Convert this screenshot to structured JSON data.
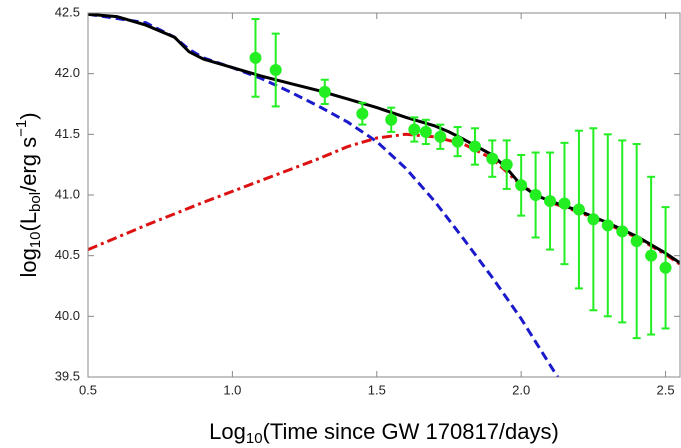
{
  "chart_data": {
    "type": "line",
    "xlabel": [
      "Log",
      "10",
      "(Time since GW 170817/days)"
    ],
    "ylabel": [
      "log",
      "10",
      "(L",
      "bol",
      "/erg s",
      "−1",
      ")"
    ],
    "xlim": [
      0.5,
      2.55
    ],
    "ylim": [
      39.5,
      42.5
    ],
    "xticks": [
      0.5,
      {
        "value": 1,
        "label": "1.0"
      },
      1.5,
      {
        "value": 2,
        "label": "2.0"
      },
      2.5
    ],
    "yticks": [
      39.5,
      {
        "value": 40,
        "label": "40.0"
      },
      40.5,
      {
        "value": 41,
        "label": "41.0"
      },
      41.5,
      {
        "value": 42,
        "label": "42.0"
      },
      42.5
    ],
    "series": [
      {
        "color": "#1a1acc",
        "style": "dashed",
        "x": [
          0.5,
          0.7,
          0.8,
          0.85,
          0.9,
          1.0,
          1.1,
          1.2,
          1.3,
          1.4,
          1.5,
          1.6,
          1.7,
          1.8,
          1.9,
          2.0,
          2.1,
          2.14
        ],
        "values": [
          42.49,
          42.42,
          42.3,
          42.2,
          42.13,
          42.05,
          41.96,
          41.85,
          41.73,
          41.6,
          41.44,
          41.22,
          40.95,
          40.64,
          40.32,
          39.98,
          39.6,
          39.45
        ]
      },
      {
        "color": "#dd1111",
        "style": "dashdot",
        "x": [
          0.5,
          0.7,
          0.9,
          1.1,
          1.3,
          1.4,
          1.5,
          1.6,
          1.7,
          1.8,
          1.9,
          2.0,
          2.1,
          2.2,
          2.3,
          2.4,
          2.5,
          2.55
        ],
        "values": [
          40.55,
          40.75,
          40.94,
          41.12,
          41.3,
          41.4,
          41.47,
          41.5,
          41.48,
          41.42,
          41.3,
          41.08,
          40.94,
          40.86,
          40.76,
          40.65,
          40.51,
          40.43
        ]
      },
      {
        "color": "#000000",
        "style": "solid",
        "x": [
          0.5,
          0.6,
          0.7,
          0.8,
          0.85,
          0.9,
          1.0,
          1.1,
          1.2,
          1.3,
          1.4,
          1.5,
          1.6,
          1.7,
          1.75,
          1.8,
          1.9,
          1.95,
          2.0,
          2.05,
          2.1,
          2.2,
          2.3,
          2.4,
          2.5,
          2.55
        ],
        "values": [
          42.49,
          42.47,
          42.4,
          42.3,
          42.18,
          42.12,
          42.05,
          41.98,
          41.92,
          41.86,
          41.79,
          41.72,
          41.64,
          41.57,
          41.52,
          41.46,
          41.33,
          41.22,
          41.08,
          41.0,
          40.95,
          40.87,
          40.77,
          40.66,
          40.52,
          40.44
        ]
      },
      {
        "color": "#22ee22",
        "style": "errorbar",
        "x": [
          1.08,
          1.15,
          1.32,
          1.45,
          1.55,
          1.63,
          1.67,
          1.72,
          1.78,
          1.84,
          1.9,
          1.95,
          2.0,
          2.05,
          2.1,
          2.15,
          2.2,
          2.25,
          2.3,
          2.35,
          2.4,
          2.45,
          2.5
        ],
        "values": [
          42.13,
          42.03,
          41.85,
          41.67,
          41.62,
          41.54,
          41.52,
          41.48,
          41.44,
          41.4,
          41.3,
          41.25,
          41.08,
          41.0,
          40.95,
          40.93,
          40.88,
          40.8,
          40.75,
          40.7,
          40.62,
          40.5,
          40.4
        ],
        "errors": [
          0.32,
          0.3,
          0.1,
          0.09,
          0.1,
          0.1,
          0.1,
          0.1,
          0.12,
          0.15,
          0.15,
          0.2,
          0.25,
          0.35,
          0.4,
          0.5,
          0.65,
          0.75,
          0.75,
          0.75,
          0.8,
          0.65,
          0.5
        ]
      }
    ]
  }
}
